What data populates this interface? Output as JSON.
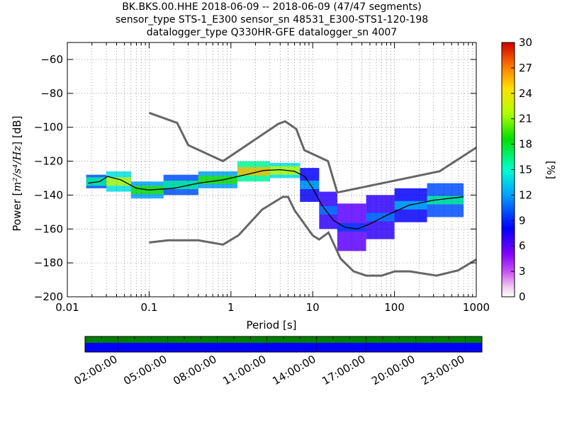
{
  "chart_data": {
    "type": "heatmap",
    "title_lines": [
      "BK.BKS.00.HHE   2018-06-09 -- 2018-06-09  (47/47 segments)",
      "sensor_type STS-1_E300 sensor_sn 48531_E300-STS1-120-198",
      "datalogger_type Q330HR-GFE datalogger_sn 4007"
    ],
    "xlabel": "Period [s]",
    "ylabel_prefix": "Power [",
    "ylabel_math": "m²/s⁴/Hz",
    "ylabel_suffix": "] [dB]",
    "x_scale": "log",
    "xlim": [
      0.01,
      1000
    ],
    "ylim": [
      -200,
      -50
    ],
    "x_ticks": [
      0.01,
      0.1,
      1,
      10,
      100,
      1000
    ],
    "x_tick_labels": [
      "0.01",
      "0.1",
      "1",
      "10",
      "100",
      "1000"
    ],
    "y_ticks": [
      -200,
      -180,
      -160,
      -140,
      -120,
      -100,
      -80,
      -60
    ],
    "y_tick_labels": [
      "−200",
      "−180",
      "−160",
      "−140",
      "−120",
      "−100",
      "−80",
      "−60"
    ],
    "grid": "dotted",
    "colorbar": {
      "label": "[%]",
      "range": [
        0,
        30
      ],
      "ticks": [
        0,
        3,
        6,
        9,
        12,
        15,
        18,
        21,
        24,
        27,
        30
      ],
      "tick_labels": [
        "0",
        "3",
        "6",
        "9",
        "12",
        "15",
        "18",
        "21",
        "24",
        "27",
        "30"
      ]
    },
    "noise_models": [
      {
        "name": "high",
        "x": [
          0.1,
          0.22,
          0.3,
          0.8,
          3.8,
          4.6,
          6.3,
          7.9,
          15.4,
          20,
          354.8,
          1000
        ],
        "y": [
          -91.5,
          -97.4,
          -110.5,
          -120,
          -98,
          -96.5,
          -101,
          -113.5,
          -120,
          -138.5,
          -126,
          -112
        ]
      },
      {
        "name": "low",
        "x": [
          0.1,
          0.17,
          0.4,
          0.8,
          1.24,
          2.4,
          4.3,
          5,
          6,
          10,
          12,
          15.6,
          21.9,
          31.6,
          45,
          70,
          101,
          154,
          328,
          600,
          1000
        ],
        "y": [
          -168,
          -166.7,
          -166.7,
          -169.2,
          -163.7,
          -148.6,
          -141.1,
          -141.1,
          -149,
          -163.8,
          -166.2,
          -162.1,
          -177.5,
          -185,
          -187.5,
          -187.5,
          -185,
          -185,
          -187.5,
          -184.4,
          -178
        ]
      }
    ],
    "mean_curve": {
      "x": [
        0.018,
        0.025,
        0.031,
        0.045,
        0.07,
        0.1,
        0.2,
        0.4,
        0.8,
        1.5,
        2.5,
        4,
        6,
        8,
        10,
        13,
        18,
        25,
        35,
        50,
        80,
        150,
        300,
        700
      ],
      "y": [
        -133,
        -132,
        -129,
        -131,
        -136,
        -137,
        -136,
        -133,
        -131,
        -128,
        -125.5,
        -125,
        -126,
        -129,
        -136,
        -146,
        -155,
        -159,
        -160,
        -157,
        -152,
        -146,
        -143,
        -141
      ]
    },
    "psd_density": [
      {
        "x_min": 0.017,
        "x_max": 0.03,
        "y_min": -136,
        "y_max": -128,
        "level": 10
      },
      {
        "x_min": 0.03,
        "x_max": 0.06,
        "y_min": -138,
        "y_max": -126,
        "level": 14
      },
      {
        "x_min": 0.06,
        "x_max": 0.15,
        "y_min": -142,
        "y_max": -132,
        "level": 12
      },
      {
        "x_min": 0.15,
        "x_max": 0.4,
        "y_min": -140,
        "y_max": -128,
        "level": 10
      },
      {
        "x_min": 0.4,
        "x_max": 1.2,
        "y_min": -136,
        "y_max": -126,
        "level": 12
      },
      {
        "x_min": 1.2,
        "x_max": 3,
        "y_min": -132,
        "y_max": -120,
        "level": 16
      },
      {
        "x_min": 3,
        "x_max": 7,
        "y_min": -130,
        "y_max": -121,
        "level": 14
      },
      {
        "x_min": 7,
        "x_max": 12,
        "y_min": -144,
        "y_max": -124,
        "level": 8
      },
      {
        "x_min": 12,
        "x_max": 20,
        "y_min": -160,
        "y_max": -138,
        "level": 7
      },
      {
        "x_min": 20,
        "x_max": 45,
        "y_min": -173,
        "y_max": -145,
        "level": 6
      },
      {
        "x_min": 45,
        "x_max": 100,
        "y_min": -166,
        "y_max": -140,
        "level": 7
      },
      {
        "x_min": 100,
        "x_max": 250,
        "y_min": -156,
        "y_max": -136,
        "level": 8
      },
      {
        "x_min": 250,
        "x_max": 700,
        "y_min": -153,
        "y_max": -133,
        "level": 10
      }
    ]
  },
  "coverage_bar": {
    "colors": [
      "#008000",
      "#0000ff"
    ],
    "time_tick_labels": [
      "02:00:00",
      "05:00:00",
      "08:00:00",
      "11:00:00",
      "14:00:00",
      "17:00:00",
      "20:00:00",
      "23:00:00"
    ]
  }
}
